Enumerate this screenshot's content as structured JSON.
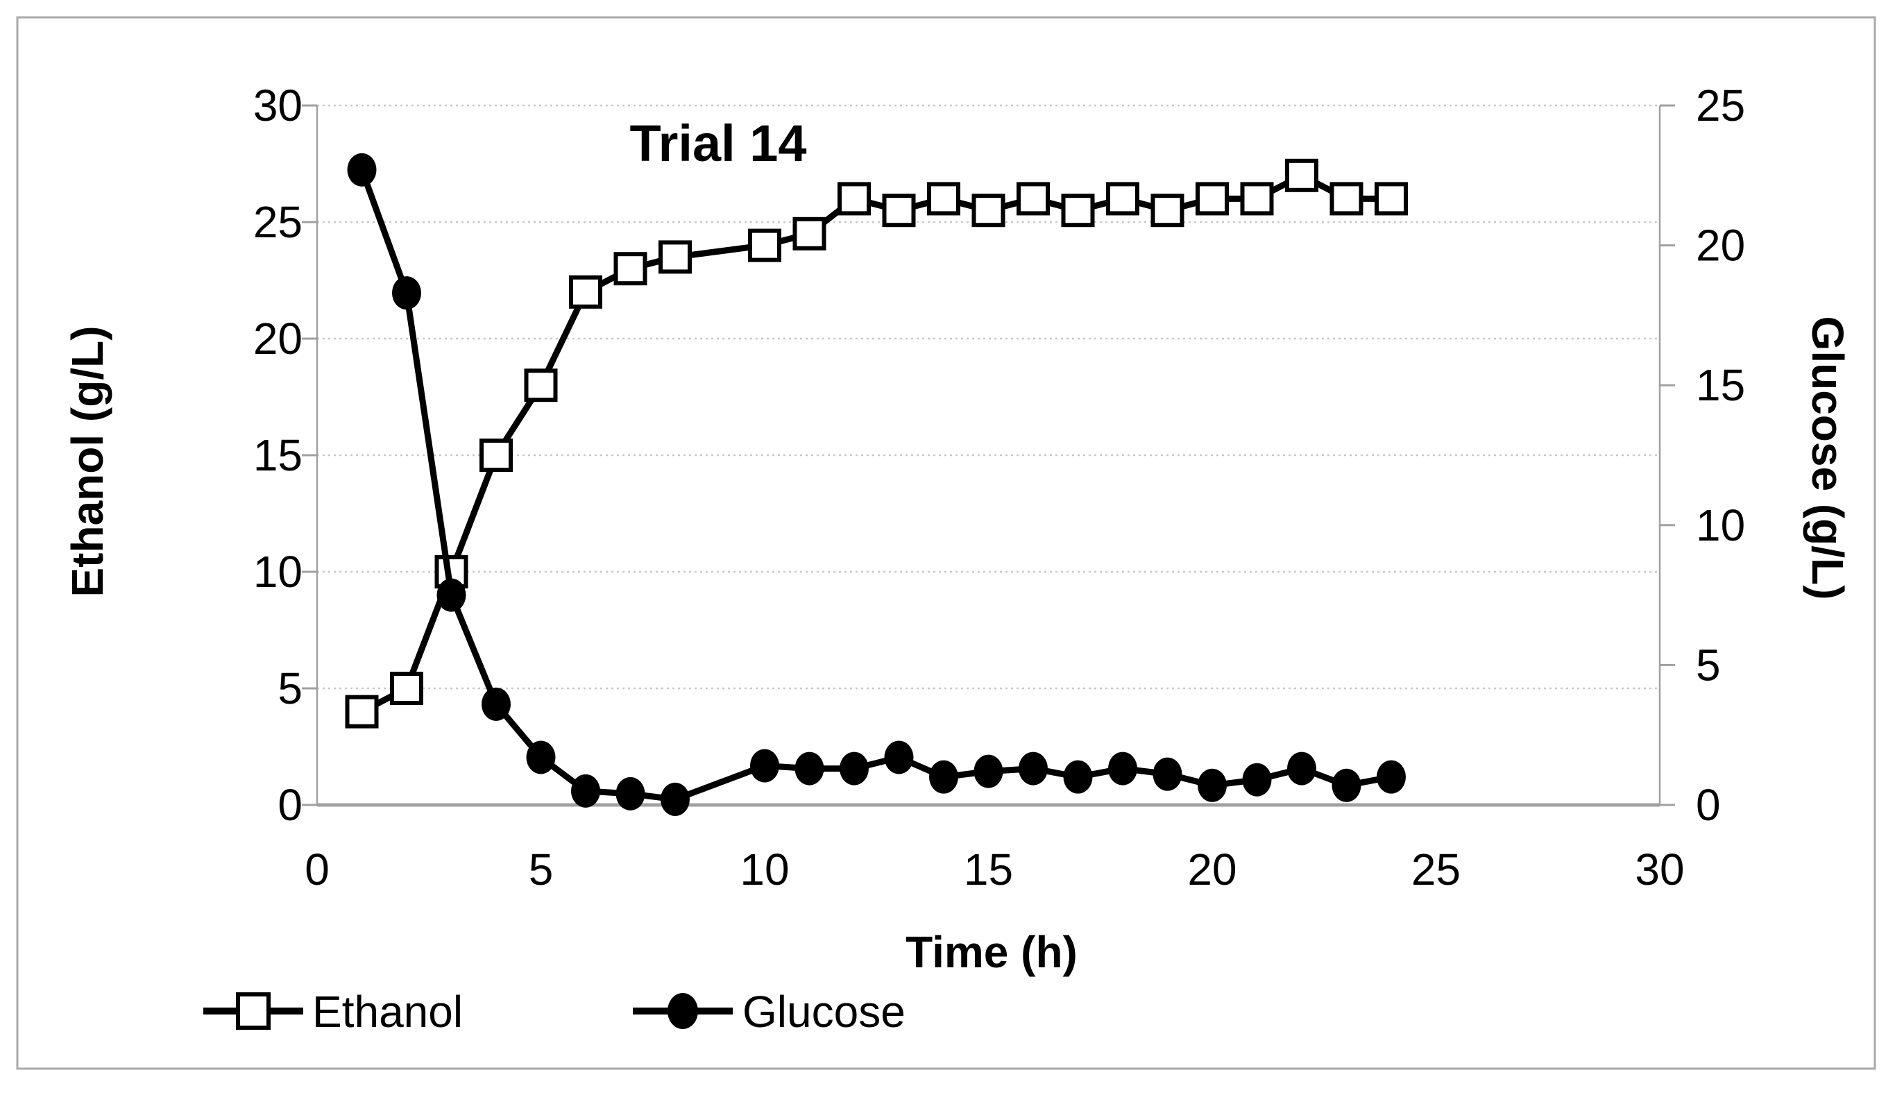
{
  "figure": {
    "background_color": "#ffffff",
    "border_color": "#a9a9a9",
    "series_color": "#000000",
    "gridline_color": "#c8c8c8",
    "axis_line_color": "#a0a0a0",
    "text_color": "#000000"
  },
  "chart_data": {
    "type": "line",
    "title": "Trial 14",
    "xlabel": "Time (h)",
    "ylabel_left": "Ethanol (g/L)",
    "ylabel_right": "Glucose (g/L)",
    "xlim": [
      0,
      30
    ],
    "x_ticks": [
      0,
      5,
      10,
      15,
      20,
      25,
      30
    ],
    "ylim_left": [
      0,
      30
    ],
    "y_ticks_left": [
      0,
      5,
      10,
      15,
      20,
      25,
      30
    ],
    "ylim_right": [
      0,
      25
    ],
    "y_ticks_right": [
      0,
      5,
      10,
      15,
      20,
      25
    ],
    "grid": "horizontal dotted gridlines at left-axis multiples of 5",
    "legend_position": "bottom-left",
    "series": [
      {
        "name": "Ethanol",
        "axis": "left",
        "marker": "open-square",
        "color": "#000000",
        "x": [
          1,
          2,
          3,
          4,
          5,
          6,
          7,
          8,
          10,
          11,
          12,
          13,
          14,
          15,
          16,
          17,
          18,
          19,
          20,
          21,
          22,
          23,
          24
        ],
        "y": [
          4,
          5,
          10,
          15,
          18,
          22,
          23,
          23.5,
          24,
          24.5,
          26,
          25.5,
          26,
          25.5,
          26,
          25.5,
          26,
          25.5,
          26,
          26,
          27,
          26,
          26
        ]
      },
      {
        "name": "Glucose",
        "axis": "right",
        "marker": "filled-circle",
        "color": "#000000",
        "x": [
          1,
          2,
          3,
          4,
          5,
          6,
          7,
          8,
          10,
          11,
          12,
          13,
          14,
          15,
          16,
          17,
          18,
          19,
          20,
          21,
          22,
          23,
          24
        ],
        "y": [
          22.7,
          18.3,
          7.5,
          3.6,
          1.7,
          0.5,
          0.4,
          0.2,
          1.4,
          1.3,
          1.3,
          1.7,
          1.0,
          1.2,
          1.3,
          1.0,
          1.3,
          1.1,
          0.7,
          0.9,
          1.3,
          0.7,
          1.0
        ]
      }
    ]
  },
  "legend": {
    "items": [
      {
        "label": "Ethanol",
        "marker": "open-square"
      },
      {
        "label": "Glucose",
        "marker": "filled-circle"
      }
    ]
  }
}
